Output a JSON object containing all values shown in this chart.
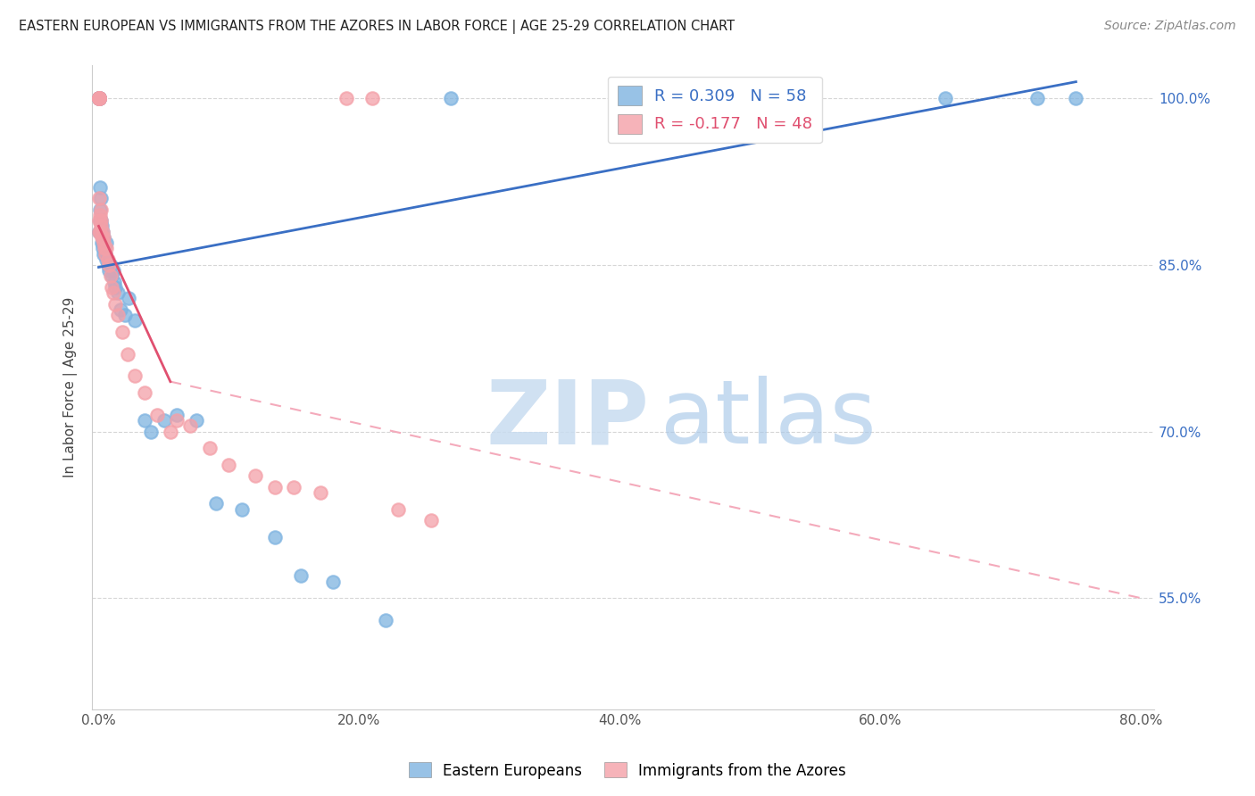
{
  "title": "EASTERN EUROPEAN VS IMMIGRANTS FROM THE AZORES IN LABOR FORCE | AGE 25-29 CORRELATION CHART",
  "source": "Source: ZipAtlas.com",
  "ylabel": "In Labor Force | Age 25-29",
  "xlim": [
    0.0,
    80.0
  ],
  "ylim": [
    45.0,
    103.0
  ],
  "xticks": [
    0.0,
    20.0,
    40.0,
    60.0,
    80.0
  ],
  "yticks": [
    55.0,
    70.0,
    85.0,
    100.0
  ],
  "ytick_labels": [
    "55.0%",
    "70.0%",
    "85.0%",
    "100.0%"
  ],
  "xtick_labels": [
    "0.0%",
    "20.0%",
    "40.0%",
    "60.0%",
    "80.0%"
  ],
  "blue_color": "#7EB3E0",
  "pink_color": "#F4A0A8",
  "blue_line_color": "#3A6FC4",
  "pink_line_solid_color": "#E05070",
  "pink_line_dash_color": "#F4AABB",
  "R_blue": 0.309,
  "N_blue": 58,
  "R_pink": -0.177,
  "N_pink": 48,
  "series_names": [
    "Eastern Europeans",
    "Immigrants from the Azores"
  ],
  "watermark_zip": "ZIP",
  "watermark_atlas": "atlas",
  "background_color": "#FFFFFF",
  "grid_color": "#CCCCCC",
  "blue_x": [
    0.0,
    0.0,
    0.0,
    0.0,
    0.0,
    0.0,
    0.0,
    0.0,
    0.0,
    0.0,
    0.0,
    0.05,
    0.08,
    0.1,
    0.12,
    0.15,
    0.18,
    0.2,
    0.22,
    0.25,
    0.28,
    0.3,
    0.32,
    0.35,
    0.38,
    0.4,
    0.45,
    0.5,
    0.55,
    0.6,
    0.7,
    0.8,
    0.9,
    1.0,
    1.1,
    1.2,
    1.3,
    1.5,
    1.7,
    2.0,
    2.3,
    2.8,
    3.5,
    4.0,
    5.0,
    6.0,
    7.5,
    9.0,
    11.0,
    13.5,
    15.5,
    18.0,
    22.0,
    27.0,
    55.0,
    65.0,
    72.0,
    75.0
  ],
  "blue_y": [
    100.0,
    100.0,
    100.0,
    100.0,
    100.0,
    100.0,
    100.0,
    100.0,
    100.0,
    100.0,
    100.0,
    88.0,
    90.0,
    92.0,
    89.0,
    91.0,
    88.0,
    89.0,
    87.0,
    88.5,
    87.0,
    86.5,
    88.0,
    87.0,
    86.0,
    87.5,
    86.5,
    86.0,
    87.0,
    85.5,
    85.0,
    84.5,
    85.0,
    84.0,
    84.5,
    83.5,
    83.0,
    82.5,
    81.0,
    80.5,
    82.0,
    80.0,
    71.0,
    70.0,
    71.0,
    71.5,
    71.0,
    63.5,
    63.0,
    60.5,
    57.0,
    56.5,
    53.0,
    100.0,
    100.0,
    100.0,
    100.0,
    100.0
  ],
  "pink_x": [
    0.0,
    0.0,
    0.0,
    0.0,
    0.0,
    0.0,
    0.0,
    0.0,
    0.0,
    0.0,
    0.05,
    0.08,
    0.1,
    0.15,
    0.18,
    0.2,
    0.25,
    0.3,
    0.35,
    0.4,
    0.45,
    0.5,
    0.6,
    0.7,
    0.8,
    0.9,
    1.0,
    1.1,
    1.3,
    1.5,
    1.8,
    2.2,
    2.8,
    3.5,
    4.5,
    5.5,
    6.0,
    7.0,
    8.5,
    10.0,
    12.0,
    13.5,
    15.0,
    17.0,
    19.0,
    21.0,
    23.0,
    25.5
  ],
  "pink_y": [
    100.0,
    100.0,
    100.0,
    100.0,
    100.0,
    100.0,
    100.0,
    100.0,
    89.0,
    88.0,
    91.0,
    89.5,
    88.0,
    90.0,
    88.5,
    89.0,
    87.5,
    88.0,
    87.0,
    87.5,
    86.5,
    86.0,
    86.5,
    85.5,
    85.0,
    84.0,
    83.0,
    82.5,
    81.5,
    80.5,
    79.0,
    77.0,
    75.0,
    73.5,
    71.5,
    70.0,
    71.0,
    70.5,
    68.5,
    67.0,
    66.0,
    65.0,
    65.0,
    64.5,
    100.0,
    100.0,
    63.0,
    62.0
  ],
  "blue_regline_x0": 0.0,
  "blue_regline_y0": 84.8,
  "blue_regline_x1": 75.0,
  "blue_regline_y1": 101.5,
  "pink_regline_x0": 0.0,
  "pink_regline_y0": 88.5,
  "pink_regline_x1_solid": 5.5,
  "pink_regline_y1_solid": 74.5,
  "pink_regline_x1_dash": 80.0,
  "pink_regline_y1_dash": 55.0
}
